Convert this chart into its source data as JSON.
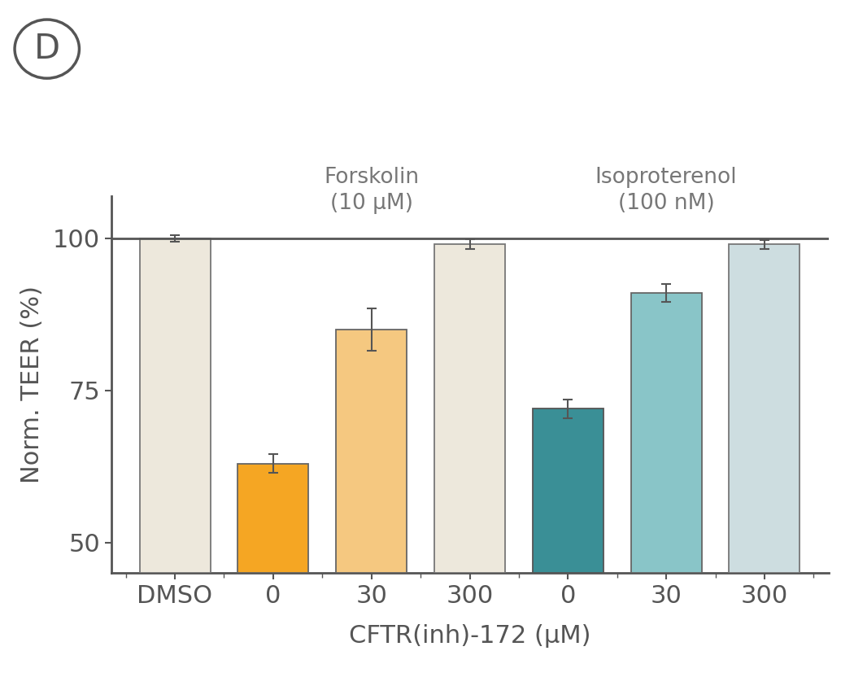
{
  "categories": [
    "DMSO",
    "0",
    "30",
    "300",
    "0",
    "30",
    "300"
  ],
  "values": [
    100,
    63,
    85,
    99,
    72,
    91,
    99
  ],
  "errors": [
    0.5,
    1.5,
    3.5,
    0.8,
    1.5,
    1.5,
    0.7
  ],
  "bar_colors": [
    "#ede8dc",
    "#f5a623",
    "#f5c880",
    "#ede8dc",
    "#3a8f96",
    "#89c5c8",
    "#cddde0"
  ],
  "bar_edgecolors": [
    "#777777",
    "#666666",
    "#666666",
    "#777777",
    "#555555",
    "#666666",
    "#777777"
  ],
  "ylabel": "Norm. TEER (%)",
  "xlabel": "CFTR(inh)-172 (μM)",
  "ylim": [
    45,
    107
  ],
  "yticks": [
    50,
    75,
    100
  ],
  "xtick_labels": [
    "DMSO",
    "0",
    "30",
    "300",
    "0",
    "30",
    "300"
  ],
  "panel_label": "D",
  "annotation_forskolin": "Forskolin\n(10 μM)",
  "annotation_isoproterenol": "Isoproterenol\n(100 nM)",
  "annotation_color": "#777777",
  "axis_color": "#555555",
  "background_color": "#ffffff",
  "bar_width": 0.72,
  "figsize": [
    10.5,
    8.59
  ],
  "dpi": 100
}
